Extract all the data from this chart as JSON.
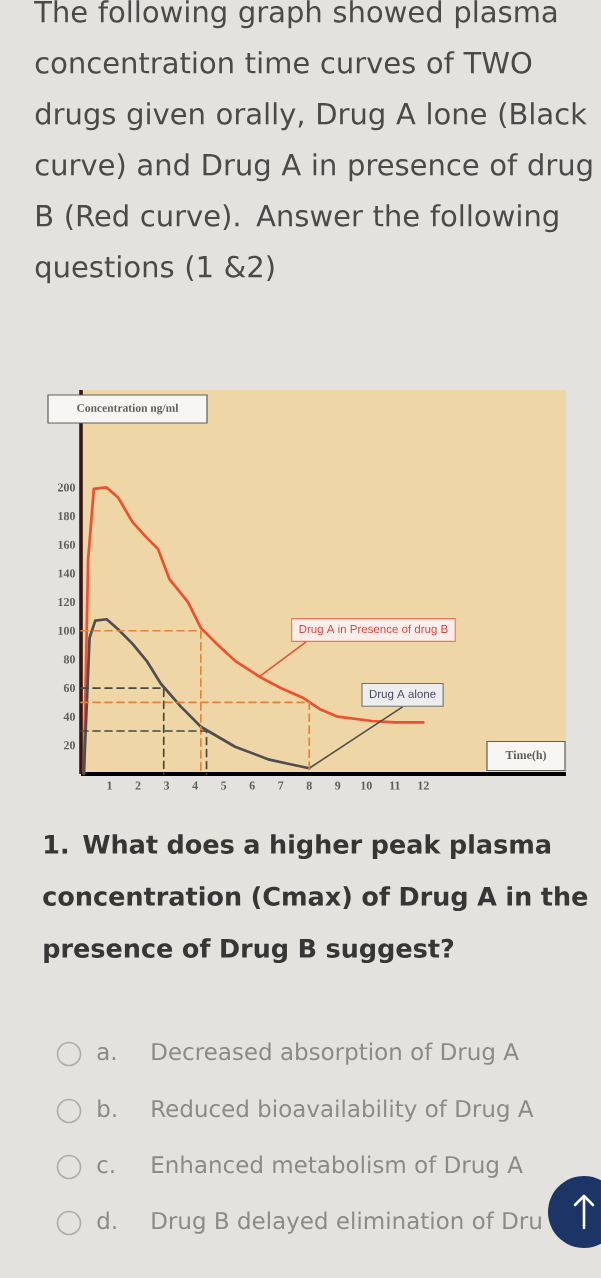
{
  "chart_data": {
    "type": "line",
    "title": "The following graph showed plasma concentration time curves of TWO drugs given orally, Drug A lone (Black curve) and Drug A in presence of drug B (Red curve). Answer the following questions (1 &2)",
    "xlabel": "Time(h)",
    "ylabel": "Concentration ng/ml",
    "annotations": [
      "1. What does a higher peak plasma concentration (Cmax) of Drug A in the presence of Drug B suggest?",
      "a.",
      "Decreased absorption of Drug A",
      "b.",
      "Reduced bioavailability of Drug A",
      "c.",
      "Enhanced metabolism of Drug A",
      "d.",
      "Drug B delayed elimination of Dru"
    ],
    "xlim": [
      0,
      17
    ],
    "ylim": [
      0,
      268
    ],
    "xticks": [
      1,
      2,
      3,
      4,
      5,
      6,
      7,
      8,
      9,
      10,
      11,
      12
    ],
    "yticks": [
      20,
      40,
      60,
      80,
      100,
      120,
      140,
      160,
      180,
      200
    ],
    "series": [
      {
        "name": "Drug A in Presence of drug B",
        "color": "#f0502d",
        "x": [
          0.1,
          0.25,
          0.45,
          0.9,
          1.3,
          1.8,
          2.3,
          2.7,
          3.1,
          3.75,
          4.2,
          4.8,
          5.4,
          6.25,
          7.0,
          7.8,
          8.4,
          9.0,
          10.2,
          11.0,
          12.0
        ],
        "values": [
          0,
          150,
          199,
          200,
          193,
          176,
          165,
          157,
          136,
          120,
          102,
          90,
          79,
          68,
          60,
          53,
          45,
          40,
          37,
          36,
          36
        ]
      },
      {
        "name": "Drug A alone",
        "color": "#4f4f4f",
        "x": [
          0.1,
          0.3,
          0.5,
          0.9,
          1.3,
          1.8,
          2.3,
          2.8,
          3.5,
          4.2,
          5.4,
          6.6,
          7.3,
          8.0
        ],
        "values": [
          0,
          95,
          107,
          108,
          101,
          91,
          79,
          63,
          47,
          33,
          19,
          10,
          7,
          4
        ]
      },
      {
        "color": "#e8803a",
        "line_style": "dashed",
        "x": [
          0,
          4.2,
          4.2
        ],
        "values": [
          100,
          100,
          0
        ]
      },
      {
        "color": "#e8803a",
        "line_style": "dashed",
        "x": [
          0,
          8,
          8
        ],
        "values": [
          50,
          50,
          0
        ]
      },
      {
        "color": "#4a4a3a",
        "line_style": "dashed",
        "x": [
          0,
          2.9,
          2.9
        ],
        "values": [
          60,
          60,
          0
        ]
      },
      {
        "color": "#4a4a3a",
        "line_style": "dashed",
        "x": [
          0,
          4.4,
          4.4
        ],
        "values": [
          30,
          30,
          0
        ]
      }
    ]
  }
}
